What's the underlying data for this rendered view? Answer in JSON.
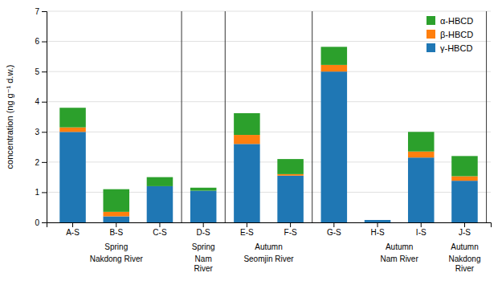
{
  "chart_data": {
    "type": "bar",
    "stacked": true,
    "categories": [
      "A-S",
      "B-S",
      "C-S",
      "D-S",
      "E-S",
      "F-S",
      "G-S",
      "H-S",
      "I-S",
      "J-S"
    ],
    "series": [
      {
        "name": "γ-HBCD",
        "values": [
          3.0,
          0.2,
          1.2,
          1.05,
          2.6,
          1.55,
          5.0,
          0.08,
          2.15,
          1.38
        ]
      },
      {
        "name": "β-HBCD",
        "values": [
          0.15,
          0.15,
          0.0,
          0.0,
          0.3,
          0.05,
          0.22,
          0.0,
          0.2,
          0.15
        ]
      },
      {
        "name": "α-HBCD",
        "values": [
          0.65,
          0.75,
          0.3,
          0.1,
          0.72,
          0.5,
          0.6,
          0.0,
          0.65,
          0.67
        ]
      }
    ],
    "ylabel": "concentration  (ng g⁻¹ d.w.)",
    "ylim": [
      0,
      7
    ],
    "yticks": [
      0,
      1,
      2,
      3,
      4,
      5,
      6,
      7
    ],
    "grid": true,
    "legend": "upper right",
    "groups": [
      {
        "labels": [
          "Spring",
          "Nakdong River"
        ],
        "categories": [
          "A-S",
          "B-S",
          "C-S"
        ]
      },
      {
        "labels": [
          "Spring",
          "Nam\nRiver"
        ],
        "categories": [
          "D-S"
        ]
      },
      {
        "labels": [
          "Autumn",
          "Seomjin River"
        ],
        "categories": [
          "E-S",
          "F-S"
        ]
      },
      {
        "labels": [
          "Autumn",
          "Nam River"
        ],
        "categories": [
          "G-S",
          "H-S",
          "I-S",
          "J-S"
        ]
      },
      {
        "labels": [
          "Autumn",
          "Nakdong\nRiver"
        ],
        "categories": [
          "J-S"
        ]
      }
    ]
  }
}
